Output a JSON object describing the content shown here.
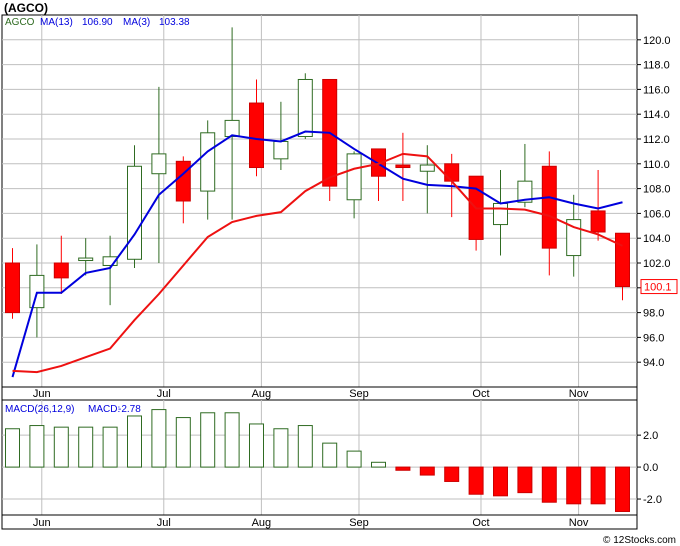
{
  "title": "(AGCO)",
  "watermark": "© 12Stocks.com",
  "colors": {
    "background": "#ffffff",
    "panel": "#ffffff",
    "grid": "#bfbfbf",
    "axis": "#000000",
    "up": "#2f6b22",
    "down": "#ff0000",
    "ma13": "#0000dd",
    "ma3": "#ee1111",
    "macdUp": "#2f6b22",
    "macdDown": "#ff0000"
  },
  "chart_data": [
    {
      "type": "candlestick",
      "legend": [
        {
          "label": "AGCO",
          "color": "#2f6b22"
        },
        {
          "label": "MA(13)",
          "value": "106.90",
          "color": "#0000dd"
        },
        {
          "label": "MA(3)",
          "value": "103.38",
          "color": "#0000dd"
        }
      ],
      "last_price_label": "100.1",
      "ylim": [
        92.0,
        122.0
      ],
      "yticks": [
        94.0,
        96.0,
        98.0,
        100.0,
        102.0,
        104.0,
        106.0,
        108.0,
        110.0,
        112.0,
        114.0,
        116.0,
        118.0,
        120.0
      ],
      "xlabels": [
        {
          "label": "Jun",
          "week": 1.2
        },
        {
          "label": "Jul",
          "week": 6.2
        },
        {
          "label": "Aug",
          "week": 10.2
        },
        {
          "label": "Sep",
          "week": 14.2
        },
        {
          "label": "Oct",
          "week": 19.2
        },
        {
          "label": "Nov",
          "week": 23.2
        }
      ],
      "candles": [
        {
          "o": 102.0,
          "h": 103.2,
          "l": 97.5,
          "c": 98.0
        },
        {
          "o": 98.4,
          "h": 103.5,
          "l": 96.0,
          "c": 101.0
        },
        {
          "o": 102.0,
          "h": 104.2,
          "l": 99.5,
          "c": 100.8
        },
        {
          "o": 102.2,
          "h": 104.0,
          "l": 101.0,
          "c": 102.4
        },
        {
          "o": 101.8,
          "h": 104.2,
          "l": 98.6,
          "c": 102.5
        },
        {
          "o": 102.3,
          "h": 111.5,
          "l": 101.6,
          "c": 109.8
        },
        {
          "o": 109.2,
          "h": 116.2,
          "l": 102.0,
          "c": 110.8
        },
        {
          "o": 110.2,
          "h": 110.6,
          "l": 105.2,
          "c": 107.0
        },
        {
          "o": 107.8,
          "h": 113.5,
          "l": 105.5,
          "c": 112.5
        },
        {
          "o": 112.2,
          "h": 121.0,
          "l": 105.5,
          "c": 113.5
        },
        {
          "o": 114.9,
          "h": 116.8,
          "l": 109.0,
          "c": 109.7
        },
        {
          "o": 110.4,
          "h": 115.0,
          "l": 109.5,
          "c": 111.8
        },
        {
          "o": 112.2,
          "h": 117.3,
          "l": 112.0,
          "c": 116.8
        },
        {
          "o": 116.8,
          "h": 116.8,
          "l": 107.0,
          "c": 108.2
        },
        {
          "o": 107.1,
          "h": 111.0,
          "l": 105.6,
          "c": 110.8
        },
        {
          "o": 111.2,
          "h": 111.2,
          "l": 107.0,
          "c": 109.0
        },
        {
          "o": 109.9,
          "h": 112.5,
          "l": 107.0,
          "c": 109.7
        },
        {
          "o": 109.4,
          "h": 111.5,
          "l": 106.0,
          "c": 109.9
        },
        {
          "o": 110.0,
          "h": 110.8,
          "l": 105.7,
          "c": 108.6
        },
        {
          "o": 109.0,
          "h": 109.0,
          "l": 103.0,
          "c": 103.9
        },
        {
          "o": 105.1,
          "h": 109.5,
          "l": 102.6,
          "c": 106.8
        },
        {
          "o": 106.9,
          "h": 111.6,
          "l": 106.5,
          "c": 108.6
        },
        {
          "o": 109.8,
          "h": 111.0,
          "l": 101.0,
          "c": 103.2
        },
        {
          "o": 102.6,
          "h": 107.5,
          "l": 100.9,
          "c": 105.5
        },
        {
          "o": 106.2,
          "h": 109.5,
          "l": 103.8,
          "c": 104.5
        },
        {
          "o": 104.4,
          "h": 104.4,
          "l": 99.0,
          "c": 100.1
        }
      ],
      "series": [
        {
          "name": "MA(13)",
          "color": "#0000dd",
          "values": [
            92.8,
            99.6,
            99.6,
            101.2,
            101.6,
            104.3,
            107.5,
            109.2,
            111.0,
            112.3,
            112.0,
            111.8,
            112.6,
            112.5,
            111.2,
            110.0,
            108.8,
            108.3,
            108.2,
            108.0,
            106.8,
            107.1,
            107.3,
            106.8,
            106.4,
            106.9
          ]
        },
        {
          "name": "MA(3)",
          "color": "#ee1111",
          "values": [
            93.3,
            93.2,
            93.7,
            94.4,
            95.1,
            97.4,
            99.5,
            101.8,
            104.1,
            105.3,
            105.8,
            106.1,
            107.8,
            108.9,
            109.6,
            110.0,
            110.8,
            110.6,
            108.6,
            106.4,
            106.4,
            106.3,
            105.8,
            104.9,
            104.3,
            103.38
          ]
        }
      ]
    },
    {
      "type": "bar",
      "legend": [
        {
          "label": "MACD(26,12,9)",
          "color": "#0000dd"
        },
        {
          "label": "MACD:",
          "value": "-2.78",
          "color": "#0000dd"
        }
      ],
      "ylim": [
        -3.0,
        4.2
      ],
      "yticks": [
        2.0,
        0.0,
        -2.0
      ],
      "ytick_labels": [
        "2.0",
        "0.0",
        "-2.0"
      ],
      "xlabels": [
        {
          "label": "Jun",
          "week": 1.2
        },
        {
          "label": "Jul",
          "week": 6.2
        },
        {
          "label": "Aug",
          "week": 10.2
        },
        {
          "label": "Sep",
          "week": 14.2
        },
        {
          "label": "Oct",
          "week": 19.2
        },
        {
          "label": "Nov",
          "week": 23.2
        }
      ],
      "values": [
        2.4,
        2.6,
        2.5,
        2.5,
        2.5,
        3.2,
        3.6,
        3.1,
        3.4,
        3.4,
        2.7,
        2.4,
        2.6,
        1.5,
        1.0,
        0.3,
        -0.2,
        -0.5,
        -0.9,
        -1.7,
        -1.8,
        -1.6,
        -2.2,
        -2.3,
        -2.3,
        -2.78
      ]
    }
  ]
}
